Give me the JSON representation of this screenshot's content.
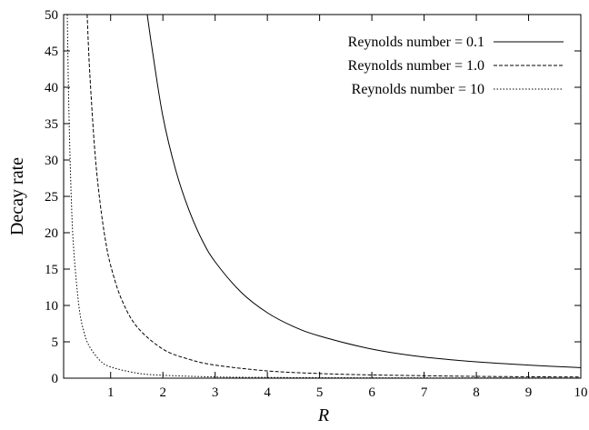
{
  "chart_data": {
    "type": "line",
    "title": "",
    "xlabel": "R",
    "ylabel": "Decay rate",
    "xlim": [
      0.1,
      10
    ],
    "ylim": [
      0,
      50
    ],
    "xticks": [
      1,
      2,
      3,
      4,
      5,
      6,
      7,
      8,
      9,
      10
    ],
    "yticks": [
      0,
      5,
      10,
      15,
      20,
      25,
      30,
      35,
      40,
      45,
      50
    ],
    "grid": false,
    "legend_position": "top-right",
    "series": [
      {
        "name": "Reynolds number = 0.1",
        "line_style": "solid",
        "x": [
          1.7,
          1.8,
          2,
          2.25,
          2.5,
          2.75,
          3,
          3.5,
          4,
          4.5,
          5,
          6,
          7,
          8,
          9,
          10
        ],
        "y": [
          50,
          45,
          36,
          28.5,
          23.1,
          19,
          16,
          11.8,
          9,
          7.1,
          5.8,
          4,
          2.9,
          2.25,
          1.8,
          1.45
        ]
      },
      {
        "name": "Reynolds number = 1.0",
        "line_style": "dashed",
        "x": [
          0.55,
          0.6,
          0.7,
          0.8,
          0.9,
          1,
          1.2,
          1.5,
          2,
          2.5,
          3,
          4,
          5,
          6,
          8,
          10
        ],
        "y": [
          50,
          42,
          31,
          24,
          19,
          15.5,
          11,
          7.1,
          4,
          2.6,
          1.8,
          1,
          0.64,
          0.45,
          0.25,
          0.16
        ]
      },
      {
        "name": "Reynolds number = 10",
        "line_style": "dotted",
        "x": [
          0.17,
          0.2,
          0.25,
          0.3,
          0.4,
          0.5,
          0.6,
          0.8,
          1,
          1.5,
          2,
          3,
          4,
          6,
          10
        ],
        "y": [
          50,
          37,
          24,
          17,
          9.5,
          6.1,
          4.3,
          2.4,
          1.55,
          0.7,
          0.4,
          0.17,
          0.1,
          0.05,
          0.02
        ]
      }
    ]
  }
}
